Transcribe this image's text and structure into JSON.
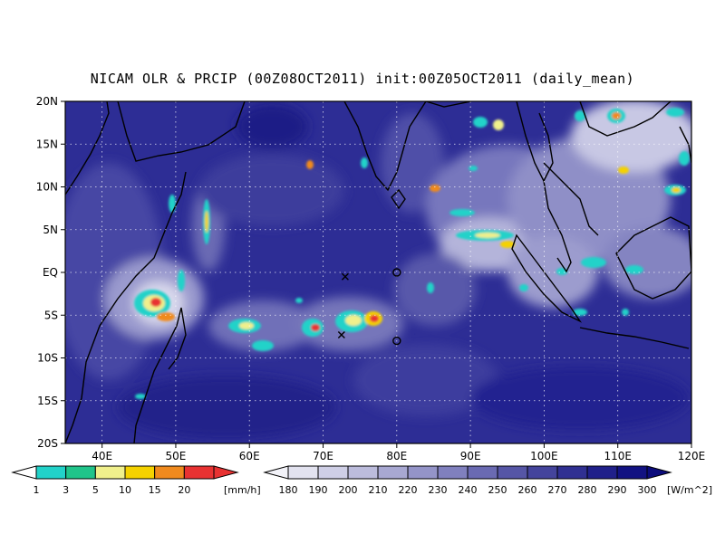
{
  "title": "NICAM OLR & PRCIP (00Z08OCT2011) init:00Z05OCT2011 (daily_mean)",
  "map": {
    "lon_range": [
      35,
      120
    ],
    "lat_range": [
      -20,
      20
    ],
    "lat_labels": [
      "20N",
      "15N",
      "10N",
      "5N",
      "EQ",
      "5S",
      "10S",
      "15S",
      "20S"
    ],
    "lon_labels": [
      "40E",
      "50E",
      "60E",
      "70E",
      "80E",
      "90E",
      "100E",
      "110E",
      "120E"
    ]
  },
  "markers": [
    {
      "symbol": "x",
      "lon": 73,
      "lat": -0.5
    },
    {
      "symbol": "x",
      "lon": 72.5,
      "lat": -7.3
    },
    {
      "symbol": "o",
      "lon": 80,
      "lat": 0
    },
    {
      "symbol": "o",
      "lon": 80,
      "lat": -8
    }
  ],
  "colorbars": {
    "precip": {
      "labels": [
        "1",
        "3",
        "5",
        "10",
        "15",
        "20"
      ],
      "unit": "[mm/h]",
      "colors": [
        "#22d2c9",
        "#20c48a",
        "#f0f08c",
        "#f5d200",
        "#f08a1e",
        "#e83232"
      ],
      "left_tip": "#ffffff",
      "right_tip": "#e83232"
    },
    "olr": {
      "labels": [
        "180",
        "190",
        "200",
        "210",
        "220",
        "230",
        "240",
        "250",
        "260",
        "270",
        "280",
        "290",
        "300"
      ],
      "unit": "[W/m^2]",
      "colors": [
        "#e2e2ef",
        "#cfcfe6",
        "#bcbcdc",
        "#a8a8d2",
        "#9494c8",
        "#8080be",
        "#6a6ab2",
        "#5656a6",
        "#44449c",
        "#303092",
        "#20208a",
        "#121282"
      ],
      "left_tip": "#f2f2f8",
      "right_tip": "#0c0c7c"
    }
  }
}
